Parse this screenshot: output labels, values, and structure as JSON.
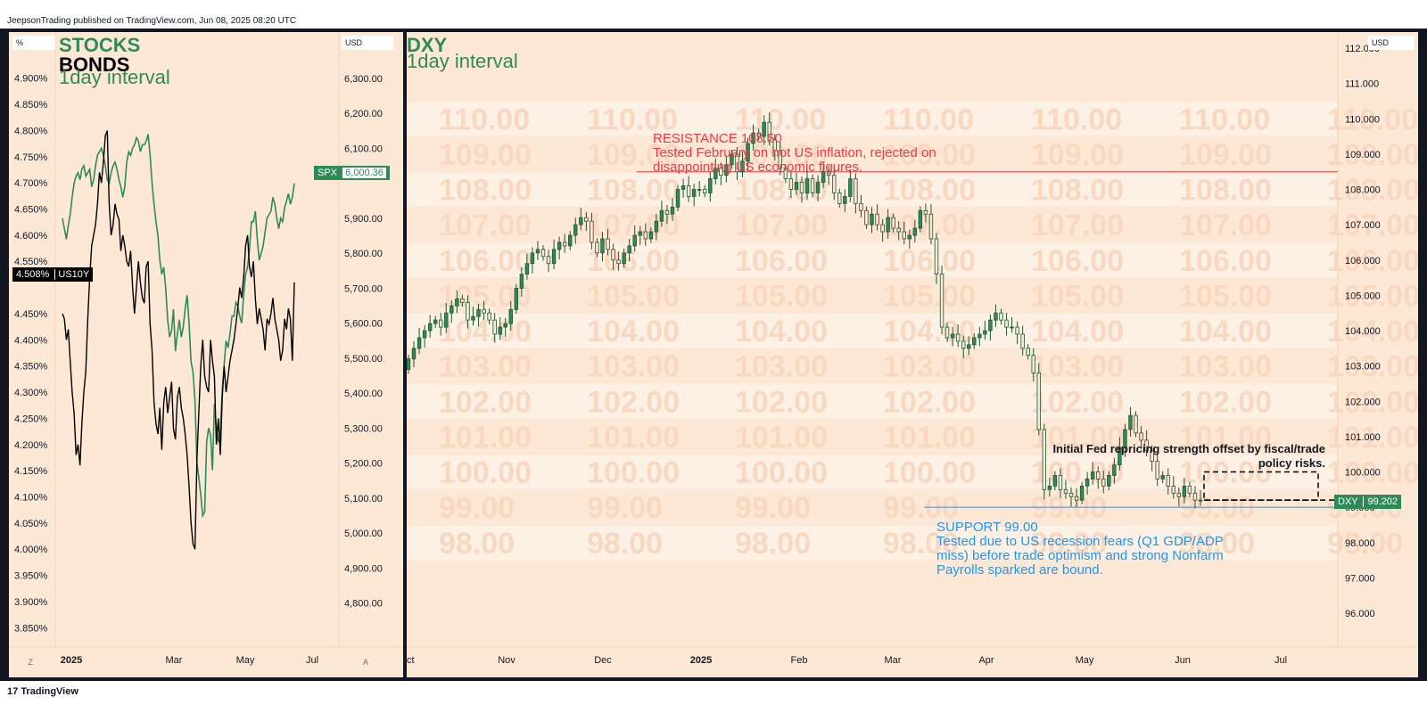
{
  "header": {
    "text": "JeepsonTrading published on TradingView.com, Jun 08, 2025 08:20 UTC"
  },
  "footer": {
    "brand": "TradingView",
    "logo": "17"
  },
  "left": {
    "unit_left": "%",
    "unit_right": "USD",
    "title1": "STOCKS",
    "title2": "BONDS",
    "title3": "1day interval",
    "yield_ticks": [
      "4.900%",
      "4.850%",
      "4.800%",
      "4.750%",
      "4.700%",
      "4.650%",
      "4.600%",
      "4.550%",
      "4.450%",
      "4.400%",
      "4.350%",
      "4.300%",
      "4.250%",
      "4.200%",
      "4.150%",
      "4.100%",
      "4.050%",
      "4.000%",
      "3.950%",
      "3.900%",
      "3.850%"
    ],
    "spx_ticks": [
      "6,300.00",
      "6,200.00",
      "6,100.00",
      "5,900.00",
      "5,800.00",
      "5,700.00",
      "5,600.00",
      "5,500.00",
      "5,400.00",
      "5,300.00",
      "5,200.00",
      "5,100.00",
      "5,000.00",
      "4,900.00",
      "4,800.00"
    ],
    "x_ticks": [
      "2025",
      "Mar",
      "May",
      "Jul"
    ],
    "z_label": "Z",
    "a_label": "A",
    "spx_tag": {
      "name": "SPX",
      "value": "6,000.36"
    },
    "us10y_tag": {
      "value": "4.508%",
      "name": "US10Y"
    }
  },
  "right": {
    "title1": "DXY",
    "title2": "1day interval",
    "unit": "USD",
    "y_ticks": [
      "112.000",
      "111.000",
      "110.000",
      "109.000",
      "108.000",
      "107.000",
      "106.000",
      "105.000",
      "104.000",
      "103.000",
      "102.000",
      "101.000",
      "100.000",
      "99.000",
      "98.000",
      "97.000",
      "96.000"
    ],
    "x_ticks": [
      "ct",
      "Nov",
      "Dec",
      "2025",
      "Feb",
      "Mar",
      "Apr",
      "May",
      "Jun",
      "Jul"
    ],
    "resistance": {
      "l1": "RESISTANCE 108.50",
      "l2": "Tested February on hot US inflation, rejected on",
      "l3": "disappointing US economic figures."
    },
    "support": {
      "l1": "SUPPORT 99.00",
      "l2": "Tested due to US recession fears (Q1 GDP/ADP",
      "l3": "miss) before trade optimism and strong Nonfarm",
      "l4": "Payrolls sparked are bound."
    },
    "note": {
      "l1": "Initial Fed repricing strength offset by fiscal/trade",
      "l2": "policy risks."
    },
    "dxy_tag": {
      "name": "DXY",
      "value": "99.202"
    },
    "watermark_levels": [
      "110.00",
      "109.00",
      "108.00",
      "107.00",
      "106.00",
      "105.00",
      "104.00",
      "103.00",
      "102.00",
      "101.00",
      "100.00",
      "99.00",
      "98.00"
    ]
  },
  "colors": {
    "green": "#2e8b57",
    "black": "#000000",
    "red": "#f23645",
    "blue": "#2196f3",
    "pane_bg": "#fde8d6"
  },
  "chart_data": [
    {
      "type": "line",
      "title": "STOCKS BONDS",
      "series": [
        {
          "name": "SPX",
          "axis": "right",
          "x": [
            0,
            1,
            2,
            3,
            4,
            5,
            6,
            7,
            8,
            9,
            10,
            11,
            12,
            13,
            14,
            15,
            16,
            17,
            18,
            19,
            20,
            21,
            22,
            23,
            24,
            25,
            26,
            27,
            28,
            29,
            30,
            31,
            32,
            33,
            34,
            35,
            36,
            37,
            38,
            39,
            40,
            41,
            42,
            43,
            44,
            45,
            46,
            47,
            48,
            49,
            50,
            51,
            52,
            53,
            54,
            55,
            56,
            57,
            58,
            59,
            60,
            61,
            62,
            63,
            64,
            65,
            66,
            67,
            68,
            69,
            70,
            71,
            72,
            73,
            74,
            75,
            76,
            77,
            78,
            79,
            80,
            81,
            82,
            83,
            84,
            85,
            86,
            87,
            88,
            89,
            90,
            91,
            92,
            93,
            94,
            95,
            96,
            97,
            98,
            99,
            100,
            101,
            102,
            103,
            104,
            105,
            106,
            107,
            108,
            109,
            110,
            111,
            112,
            113,
            114,
            115,
            116,
            117,
            118,
            119
          ],
          "values": [
            5900,
            5870,
            5840,
            5880,
            5910,
            5960,
            6000,
            6020,
            6030,
            6010,
            6040,
            6050,
            6020,
            6030,
            6040,
            5990,
            6010,
            6050,
            6080,
            6090,
            6100,
            6080,
            6050,
            6010,
            6000,
            6030,
            6050,
            6060,
            6040,
            6010,
            5990,
            5960,
            5990,
            6060,
            6090,
            6080,
            6100,
            6110,
            6130,
            6120,
            6090,
            6110,
            6110,
            6120,
            6140,
            6080,
            6000,
            5940,
            5890,
            5850,
            5780,
            5740,
            5760,
            5700,
            5610,
            5560,
            5580,
            5640,
            5520,
            5570,
            5610,
            5560,
            5590,
            5640,
            5680,
            5600,
            5490,
            5460,
            5380,
            5200,
            5160,
            5110,
            5050,
            5060,
            5260,
            5300,
            5280,
            5180,
            5370,
            5300,
            5260,
            5290,
            5410,
            5480,
            5550,
            5530,
            5570,
            5620,
            5620,
            5660,
            5650,
            5620,
            5600,
            5680,
            5740,
            5760,
            5810,
            5890,
            5890,
            5920,
            5840,
            5780,
            5800,
            5820,
            5860,
            5900,
            5910,
            5920,
            5960,
            5940,
            5900,
            5870,
            5900,
            5890,
            5930,
            5950,
            5970,
            5940,
            5960,
            6000
          ]
        },
        {
          "name": "US10Y",
          "axis": "left",
          "x": [
            0,
            1,
            2,
            3,
            4,
            5,
            6,
            7,
            8,
            9,
            10,
            11,
            12,
            13,
            14,
            15,
            16,
            17,
            18,
            19,
            20,
            21,
            22,
            23,
            24,
            25,
            26,
            27,
            28,
            29,
            30,
            31,
            32,
            33,
            34,
            35,
            36,
            37,
            38,
            39,
            40,
            41,
            42,
            43,
            44,
            45,
            46,
            47,
            48,
            49,
            50,
            51,
            52,
            53,
            54,
            55,
            56,
            57,
            58,
            59,
            60,
            61,
            62,
            63,
            64,
            65,
            66,
            67,
            68,
            69,
            70,
            71,
            72,
            73,
            74,
            75,
            76,
            77,
            78,
            79,
            80,
            81,
            82,
            83,
            84,
            85,
            86,
            87,
            88,
            89,
            90,
            91,
            92,
            93,
            94,
            95,
            96,
            97,
            98,
            99,
            100,
            101,
            102,
            103,
            104,
            105,
            106,
            107,
            108,
            109,
            110,
            111,
            112,
            113,
            114,
            115,
            116,
            117,
            118,
            119
          ],
          "values": [
            4.45,
            4.44,
            4.4,
            4.42,
            4.36,
            4.3,
            4.26,
            4.18,
            4.2,
            4.16,
            4.24,
            4.3,
            4.34,
            4.44,
            4.52,
            4.58,
            4.6,
            4.62,
            4.66,
            4.72,
            4.7,
            4.74,
            4.79,
            4.8,
            4.66,
            4.6,
            4.62,
            4.66,
            4.64,
            4.63,
            4.57,
            4.6,
            4.58,
            4.55,
            4.54,
            4.57,
            4.5,
            4.45,
            4.5,
            4.55,
            4.51,
            4.48,
            4.47,
            4.54,
            4.55,
            4.43,
            4.38,
            4.28,
            4.24,
            4.22,
            4.27,
            4.19,
            4.28,
            4.31,
            4.26,
            4.29,
            4.32,
            4.23,
            4.21,
            4.29,
            4.31,
            4.27,
            4.25,
            4.22,
            4.18,
            4.12,
            4.05,
            4.01,
            4.0,
            4.17,
            4.26,
            4.35,
            4.4,
            4.33,
            4.31,
            4.3,
            4.4,
            4.36,
            4.33,
            4.2,
            4.25,
            4.18,
            4.29,
            4.35,
            4.3,
            4.33,
            4.36,
            4.38,
            4.4,
            4.43,
            4.46,
            4.5,
            4.48,
            4.52,
            4.58,
            4.6,
            4.54,
            4.52,
            4.55,
            4.48,
            4.43,
            4.46,
            4.44,
            4.42,
            4.38,
            4.44,
            4.43,
            4.45,
            4.48,
            4.44,
            4.42,
            4.4,
            4.36,
            4.38,
            4.44,
            4.42,
            4.46,
            4.44,
            4.36,
            4.51
          ]
        }
      ],
      "yaxis_left": {
        "range": [
          3.83,
          4.92
        ],
        "unit": "%"
      },
      "yaxis_right": {
        "range": [
          4700,
          6330
        ],
        "unit": "USD"
      }
    },
    {
      "type": "candlestick",
      "title": "DXY",
      "ylim": [
        95.6,
        112.3
      ],
      "annotations": {
        "resistance": 108.5,
        "support": 99.0,
        "last": 99.202
      },
      "close": [
        103.2,
        103.5,
        103.8,
        104.0,
        104.2,
        104.3,
        104.1,
        104.5,
        104.7,
        104.9,
        104.8,
        104.3,
        104.4,
        104.6,
        104.5,
        104.3,
        103.9,
        104.1,
        104.2,
        104.6,
        105.2,
        105.6,
        105.9,
        106.2,
        106.3,
        106.1,
        105.9,
        106.3,
        106.5,
        106.4,
        106.7,
        107.0,
        107.2,
        107.1,
        106.5,
        106.2,
        106.6,
        106.3,
        106.0,
        105.9,
        106.2,
        106.4,
        106.7,
        106.8,
        106.6,
        106.8,
        107.1,
        107.4,
        107.3,
        107.5,
        108.0,
        108.1,
        107.8,
        108.0,
        108.0,
        107.9,
        108.3,
        108.6,
        108.4,
        108.7,
        109.0,
        108.5,
        108.8,
        109.3,
        109.6,
        109.5,
        109.9,
        109.4,
        109.1,
        108.6,
        108.3,
        108.0,
        108.2,
        107.9,
        108.3,
        107.9,
        108.2,
        108.5,
        108.4,
        107.9,
        107.6,
        107.8,
        108.3,
        107.6,
        107.4,
        107.0,
        107.3,
        107.0,
        106.8,
        107.2,
        106.9,
        106.8,
        106.6,
        106.7,
        106.9,
        107.4,
        107.3,
        106.6,
        105.6,
        104.1,
        103.8,
        103.9,
        103.7,
        103.5,
        103.6,
        103.8,
        103.9,
        104.0,
        104.3,
        104.5,
        104.3,
        104.1,
        104.1,
        103.9,
        103.5,
        103.3,
        102.8,
        101.2,
        99.5,
        99.6,
        99.9,
        99.5,
        99.4,
        99.3,
        99.2,
        99.6,
        99.8,
        100.0,
        99.8,
        99.6,
        99.9,
        100.2,
        100.7,
        101.2,
        101.6,
        101.1,
        100.9,
        100.6,
        100.3,
        99.8,
        99.9,
        99.6,
        99.4,
        99.3,
        99.6,
        99.4,
        99.2,
        99.202
      ]
    }
  ]
}
